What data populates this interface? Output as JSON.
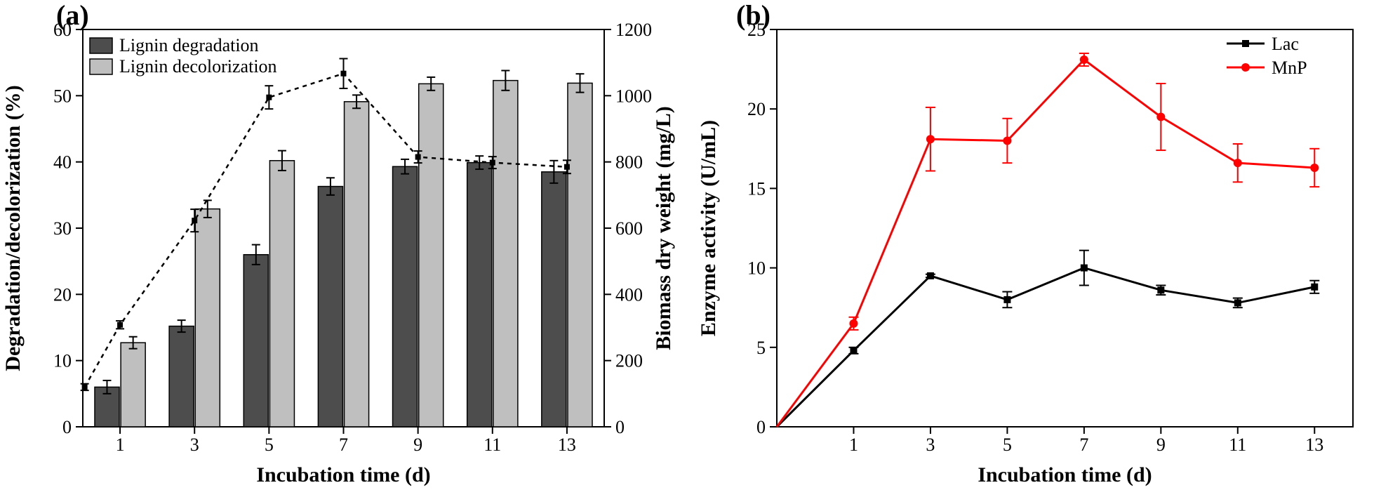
{
  "panel_a": {
    "label": "(a)",
    "type": "bar_with_secondary_line",
    "categories": [
      "1",
      "3",
      "5",
      "7",
      "9",
      "11",
      "13"
    ],
    "bars": {
      "series1": {
        "label": "Lignin degradation",
        "color": "#4d4d4d",
        "values": [
          6.0,
          15.2,
          26.0,
          36.3,
          39.3,
          39.9,
          38.5
        ],
        "errors": [
          1.0,
          0.9,
          1.5,
          1.3,
          1.1,
          1.0,
          1.7
        ]
      },
      "series2": {
        "label": "Lignin decolorization",
        "color": "#bfbfbf",
        "values": [
          12.7,
          32.9,
          40.2,
          49.1,
          51.8,
          52.3,
          51.9
        ],
        "errors": [
          0.9,
          1.3,
          1.5,
          1.0,
          1.0,
          1.5,
          1.4
        ]
      },
      "bar_width": 0.33,
      "group_gap": 0.15
    },
    "line_secondary": {
      "color": "#000000",
      "dash": "6,6",
      "marker": "square",
      "marker_size": 8,
      "values": [
        120,
        308,
        623,
        995,
        1067,
        815,
        798,
        785
      ],
      "x_at": [
        0.05,
        1,
        2,
        3,
        4,
        5,
        6,
        7
      ],
      "errors": [
        10,
        12,
        34,
        35,
        45,
        18,
        18,
        20
      ]
    },
    "left_axis": {
      "label": "Degradation/decolorization (%)",
      "min": 0,
      "max": 60,
      "step": 10,
      "label_fontsize": 30,
      "tick_fontsize": 26
    },
    "right_axis": {
      "label": "Biomass dry weight (mg/L)",
      "min": 0,
      "max": 1200,
      "step": 200,
      "label_fontsize": 30,
      "tick_fontsize": 26
    },
    "x_axis": {
      "label": "Incubation time (d)",
      "label_fontsize": 30,
      "tick_fontsize": 26
    },
    "legend": {
      "position": "upper_left",
      "fontsize": 26
    },
    "background_color": "#ffffff",
    "axis_color": "#000000",
    "axis_width": 2,
    "error_cap_width": 12
  },
  "panel_b": {
    "label": "(b)",
    "type": "line",
    "categories": [
      "1",
      "3",
      "5",
      "7",
      "9",
      "11",
      "13"
    ],
    "origin_point": true,
    "series": {
      "lac": {
        "label": "Lac",
        "color": "#000000",
        "marker": "square",
        "marker_size": 10,
        "line_width": 3,
        "values": [
          4.8,
          9.5,
          8.0,
          10.0,
          8.6,
          7.8,
          8.8
        ],
        "errors": [
          0.2,
          0.1,
          0.5,
          1.1,
          0.3,
          0.3,
          0.4
        ]
      },
      "mnp": {
        "label": "MnP",
        "color": "#ff0000",
        "marker": "circle",
        "marker_size": 10,
        "line_width": 3,
        "values": [
          6.5,
          18.1,
          18.0,
          23.1,
          19.5,
          16.6,
          16.3
        ],
        "errors": [
          0.4,
          2.0,
          1.4,
          0.4,
          2.1,
          1.2,
          1.2
        ]
      }
    },
    "y_axis": {
      "label": "Enzyme activity (U/mL)",
      "min": 0,
      "max": 25,
      "step": 5,
      "label_fontsize": 30,
      "tick_fontsize": 26
    },
    "x_axis": {
      "label": "Incubation time (d)",
      "label_fontsize": 30,
      "tick_fontsize": 26
    },
    "legend": {
      "position": "upper_right",
      "fontsize": 26
    },
    "background_color": "#ffffff",
    "axis_color": "#000000",
    "axis_width": 2,
    "error_cap_width": 14
  }
}
